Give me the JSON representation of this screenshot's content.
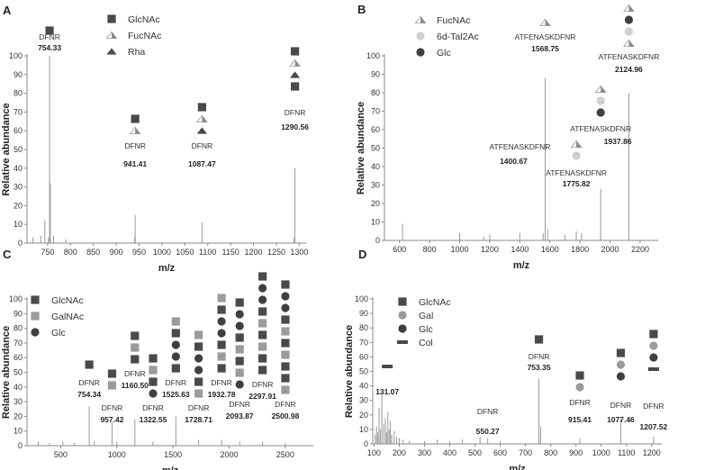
{
  "colors": {
    "glcnac": "#4a4a4a",
    "galnac": "#9b9b9b",
    "glc": "#3f3f3f",
    "gal": "#9b9b9b",
    "tal": "#cfcfcf",
    "rha": "#4a4a4a",
    "col": "#4a4a4a",
    "axis": "#888888",
    "spectrum": "#999999"
  },
  "chart_data": [
    {
      "type": "bar",
      "panel": "A",
      "xlabel": "m/z",
      "ylabel": "Relative abundance",
      "xlim": [
        705,
        1315
      ],
      "ylim": [
        0,
        100
      ],
      "xticks": [
        750,
        800,
        850,
        900,
        950,
        1000,
        1050,
        1100,
        1150,
        1200,
        1250,
        1300
      ],
      "yticks": [
        0,
        10,
        20,
        30,
        40,
        50,
        60,
        70,
        80,
        90,
        100
      ],
      "legend": [
        {
          "symbol": "glcnac-icon",
          "label": "GlcNAc"
        },
        {
          "symbol": "fucnac-icon",
          "label": "FucNAc"
        },
        {
          "symbol": "rha-icon",
          "label": "Rha"
        }
      ],
      "peaks": [
        [
          718,
          3
        ],
        [
          735,
          4
        ],
        [
          744,
          12
        ],
        [
          752,
          3
        ],
        [
          754.33,
          100
        ],
        [
          756,
          32
        ],
        [
          763,
          4
        ],
        [
          790,
          2
        ],
        [
          940,
          3
        ],
        [
          941.41,
          15
        ],
        [
          1087.47,
          11
        ],
        [
          1288,
          3
        ],
        [
          1290.56,
          40
        ]
      ],
      "annotations": [
        {
          "label": "DFNR",
          "value": "754.33",
          "x": 754.33,
          "glycans": [
            "glcnac"
          ]
        },
        {
          "label": "DFNR",
          "value": "941.41",
          "x": 941.41,
          "glycans": [
            "fucnac",
            "glcnac"
          ]
        },
        {
          "label": "DFNR",
          "value": "1087.47",
          "x": 1087.47,
          "glycans": [
            "rha",
            "fucnac",
            "glcnac"
          ]
        },
        {
          "label": "DFNR",
          "value": "1290.56",
          "x": 1290.56,
          "glycans": [
            "glcnac",
            "rha",
            "fucnac",
            "glcnac"
          ]
        }
      ]
    },
    {
      "type": "bar",
      "panel": "B",
      "xlabel": "m/z",
      "ylabel": "Relative abundance",
      "xlim": [
        500,
        2320
      ],
      "ylim": [
        0,
        100
      ],
      "xticks": [
        600,
        800,
        1000,
        1200,
        1400,
        1600,
        1800,
        2000,
        2200
      ],
      "yticks": [
        0,
        10,
        20,
        30,
        40,
        50,
        60,
        70,
        80,
        90,
        100
      ],
      "legend": [
        {
          "symbol": "fucnac-icon",
          "label": "FucNAc"
        },
        {
          "symbol": "tal-icon",
          "label": "6d-Tal2Ac"
        },
        {
          "symbol": "glc-icon",
          "label": "Glc"
        }
      ],
      "peaks": [
        [
          620,
          9
        ],
        [
          1000,
          4
        ],
        [
          1160,
          2
        ],
        [
          1200,
          3
        ],
        [
          1400,
          4
        ],
        [
          1555,
          4
        ],
        [
          1568.75,
          88
        ],
        [
          1585,
          6
        ],
        [
          1700,
          3
        ],
        [
          1775.82,
          5
        ],
        [
          1810,
          4
        ],
        [
          1937.86,
          28
        ],
        [
          2124.96,
          80
        ]
      ],
      "annotations": [
        {
          "label": "ATFENASKDFNR",
          "value": "1568.75",
          "x": 1568.75,
          "glycans": [
            "fucnac"
          ]
        },
        {
          "label": "ATFENASKDFNR",
          "value": "2124.96",
          "x": 2124.96,
          "glycans": [
            "fucnac",
            "tal",
            "glc",
            "fucnac"
          ]
        },
        {
          "label": "ATFENASKDFNR",
          "value": "1937.86",
          "x": 1937.86,
          "glycans": [
            "glc",
            "tal",
            "fucnac"
          ]
        },
        {
          "label": "ATFENASKDFNR",
          "value": "1400.67",
          "x": 1400.67,
          "glycans": []
        },
        {
          "label": "ATFENASKDFNR",
          "value": "1775.82",
          "x": 1775.82,
          "glycans": [
            "tal",
            "fucnac"
          ]
        }
      ]
    },
    {
      "type": "bar",
      "panel": "C",
      "xlabel": "m/z",
      "ylabel": "Relative abundance",
      "xlim": [
        200,
        2750
      ],
      "ylim": [
        0,
        100
      ],
      "xticks": [
        500,
        1000,
        1500,
        2000,
        2500
      ],
      "yticks": [
        0,
        10,
        20,
        30,
        40,
        50,
        60,
        70,
        80,
        90,
        100
      ],
      "legend": [
        {
          "symbol": "glcnac-icon",
          "label": "GlcNAc"
        },
        {
          "symbol": "galnac-icon",
          "label": "GalNAc"
        },
        {
          "symbol": "glc-icon",
          "label": "Glc"
        }
      ],
      "peaks": [
        [
          300,
          3
        ],
        [
          400,
          2
        ],
        [
          520,
          3
        ],
        [
          620,
          2
        ],
        [
          754.34,
          27
        ],
        [
          800,
          3
        ],
        [
          957.42,
          16
        ],
        [
          1000,
          3
        ],
        [
          1160.5,
          18
        ],
        [
          1322.55,
          3
        ],
        [
          1525.63,
          20
        ],
        [
          1728.71,
          4
        ],
        [
          1932.78,
          4
        ],
        [
          2093.87,
          3
        ],
        [
          2297.91,
          3
        ],
        [
          2500.98,
          2
        ]
      ],
      "annotations": [
        {
          "label": "DFNR",
          "value": "754.34",
          "x": 754.34,
          "glycans": [
            "glcnac"
          ]
        },
        {
          "label": "DFNR",
          "value": "957.42",
          "x": 957.42,
          "glycans": [
            "galnac",
            "glcnac"
          ]
        },
        {
          "label": "DFNR",
          "value": "1160.50",
          "x": 1160.5,
          "glycans": [
            "glcnac",
            "galnac",
            "glcnac"
          ]
        },
        {
          "label": "DFNR",
          "value": "1322.55",
          "x": 1322.55,
          "glycans": [
            "glc",
            "glcnac",
            "galnac",
            "glcnac"
          ]
        },
        {
          "label": "DFNR",
          "value": "1525.63",
          "x": 1525.63,
          "glycans": [
            "glcnac",
            "glc",
            "glc",
            "glcnac",
            "galnac"
          ]
        },
        {
          "label": "DFNR",
          "value": "1728.71",
          "x": 1728.71,
          "glycans": [
            "galnac",
            "glcnac",
            "glc",
            "glc",
            "glcnac",
            "galnac"
          ]
        },
        {
          "label": "DFNR",
          "value": "1932.78",
          "x": 1932.78,
          "glycans": [
            "glcnac",
            "galnac",
            "glcnac",
            "glc",
            "glc",
            "glcnac",
            "galnac"
          ]
        },
        {
          "label": "DFNR",
          "value": "2093.87",
          "x": 2093.87,
          "glycans": [
            "glc",
            "galnac",
            "glcnac",
            "galnac",
            "glcnac",
            "glc",
            "glc",
            "glcnac"
          ]
        },
        {
          "label": "DFNR",
          "value": "2297.91",
          "x": 2297.91,
          "glycans": [
            "glcnac",
            "glcnac",
            "galnac",
            "glcnac",
            "galnac",
            "glcnac",
            "glc",
            "glc",
            "glcnac"
          ]
        },
        {
          "label": "DFNR",
          "value": "2500.98",
          "x": 2500.98,
          "glycans": [
            "galnac",
            "glcnac",
            "glcnac",
            "galnac",
            "glcnac",
            "galnac",
            "glcnac",
            "glc",
            "glc",
            "glcnac"
          ]
        }
      ]
    },
    {
      "type": "bar",
      "panel": "D",
      "xlabel": "m/z",
      "ylabel": "Relative abundance",
      "xlim": [
        95,
        1240
      ],
      "ylim": [
        0,
        100
      ],
      "xticks": [
        100,
        200,
        300,
        400,
        500,
        600,
        700,
        800,
        900,
        1000,
        1100,
        1200
      ],
      "yticks": [
        0,
        10,
        20,
        30,
        40,
        50,
        60,
        70,
        80,
        90,
        100
      ],
      "legend": [
        {
          "symbol": "glcnac-icon",
          "label": "GlcNAc"
        },
        {
          "symbol": "gal-icon",
          "label": "Gal"
        },
        {
          "symbol": "glc-icon",
          "label": "Glc"
        },
        {
          "symbol": "col-icon",
          "label": "Col"
        }
      ],
      "peaks": [
        [
          105,
          6
        ],
        [
          110,
          12
        ],
        [
          115,
          8
        ],
        [
          120,
          25
        ],
        [
          125,
          10
        ],
        [
          131.07,
          35
        ],
        [
          138,
          14
        ],
        [
          145,
          18
        ],
        [
          150,
          8
        ],
        [
          155,
          22
        ],
        [
          160,
          10
        ],
        [
          165,
          16
        ],
        [
          170,
          6
        ],
        [
          180,
          9
        ],
        [
          190,
          5
        ],
        [
          200,
          4
        ],
        [
          215,
          3
        ],
        [
          240,
          2
        ],
        [
          300,
          2
        ],
        [
          350,
          3
        ],
        [
          400,
          2
        ],
        [
          450,
          3
        ],
        [
          520,
          5
        ],
        [
          550.27,
          4
        ],
        [
          600,
          2
        ],
        [
          753.35,
          45
        ],
        [
          760,
          12
        ],
        [
          915.41,
          4
        ],
        [
          1077.46,
          17
        ],
        [
          1207.52,
          5
        ]
      ],
      "annotations": [
        {
          "label": "",
          "value": "131.07",
          "x": 131.07,
          "glycans": [
            "col"
          ]
        },
        {
          "label": "DFNR",
          "value": "550.27",
          "x": 550.27,
          "glycans": []
        },
        {
          "label": "DFNR",
          "value": "753.35",
          "x": 753.35,
          "glycans": [
            "glcnac"
          ]
        },
        {
          "label": "DFNR",
          "value": "915.41",
          "x": 915.41,
          "glycans": [
            "gal",
            "glcnac"
          ]
        },
        {
          "label": "DFNR",
          "value": "1077.46",
          "x": 1077.46,
          "glycans": [
            "glc",
            "gal",
            "glcnac"
          ]
        },
        {
          "label": "DFNR",
          "value": "1207.52",
          "x": 1207.52,
          "glycans": [
            "col",
            "glc",
            "gal",
            "glcnac"
          ]
        }
      ]
    }
  ]
}
